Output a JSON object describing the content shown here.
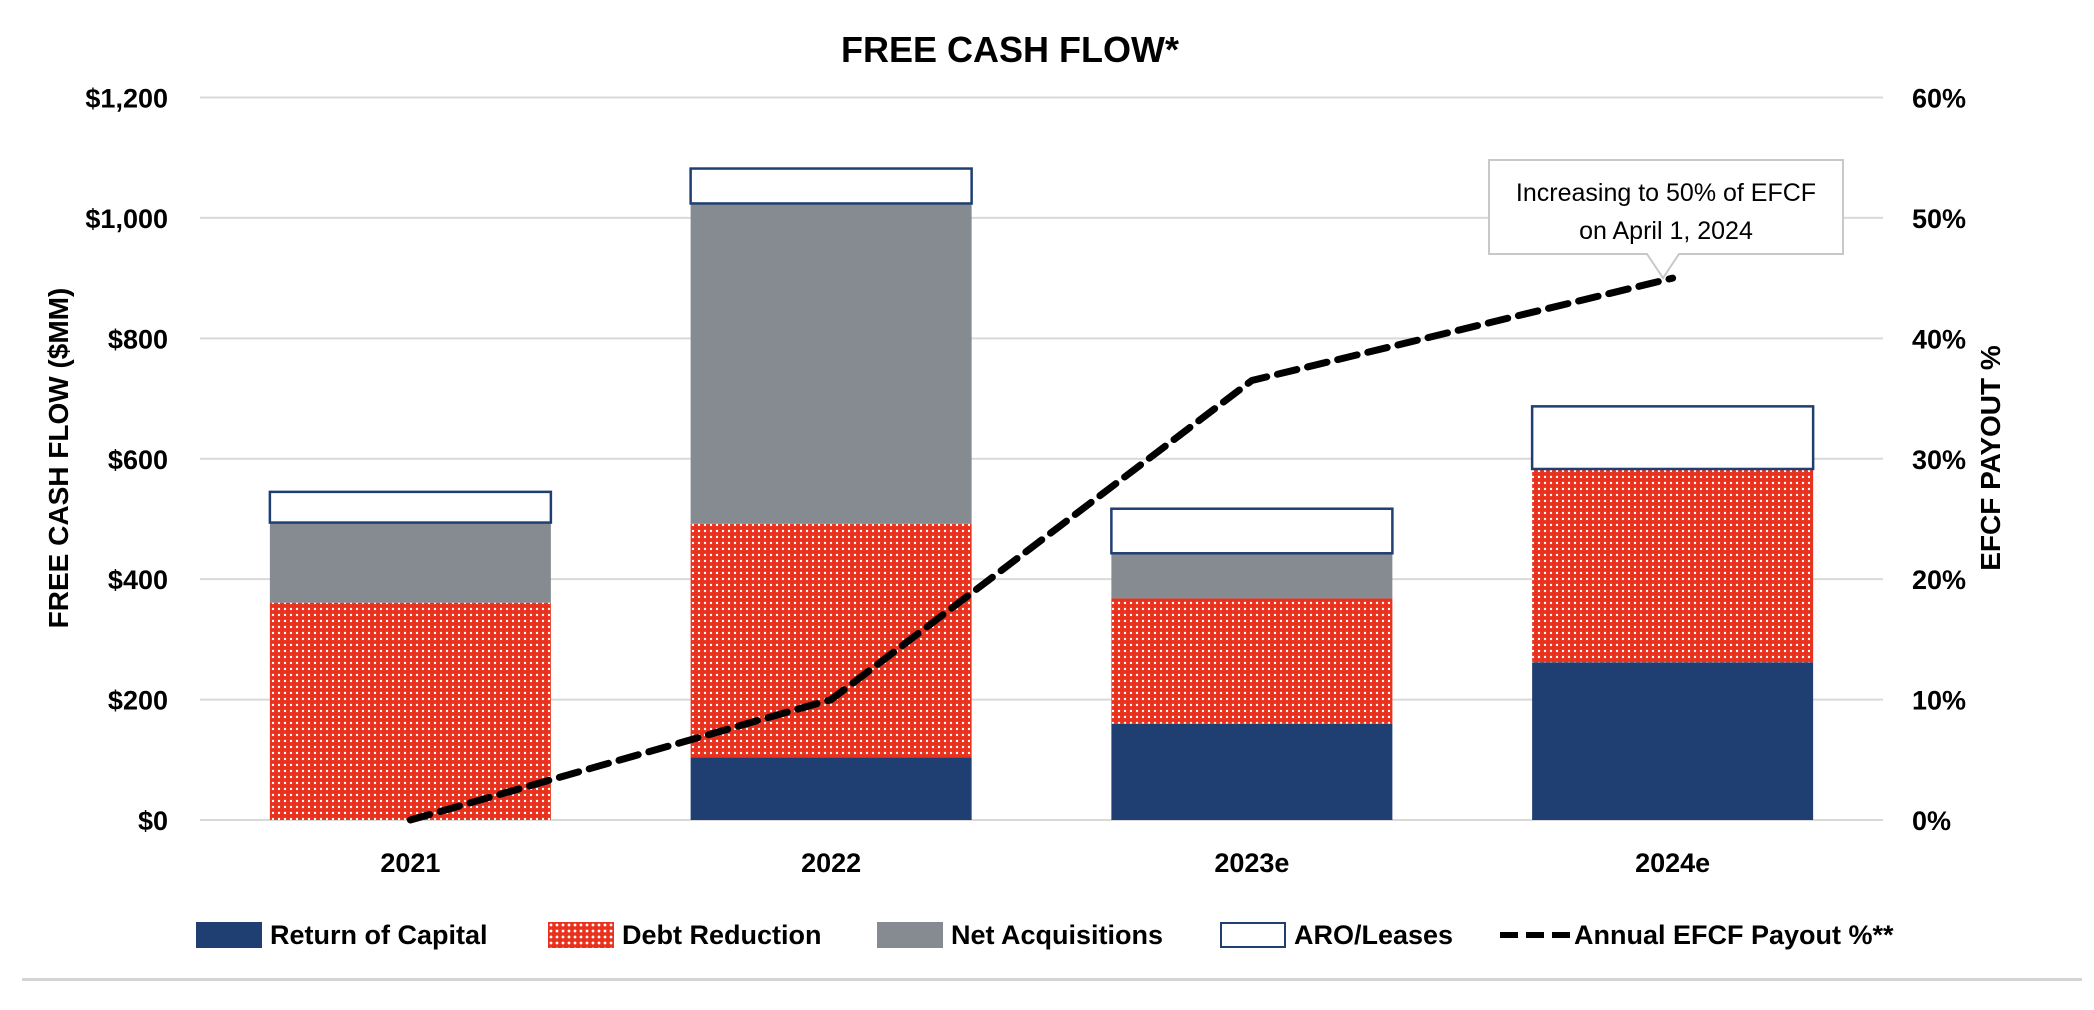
{
  "chart_data": {
    "type": "bar",
    "stacked": true,
    "title": "FREE CASH FLOW*",
    "ylabel": "FREE CASH FLOW ($MM)",
    "y2label": "EFCF PAYOUT %",
    "ylim": [
      0,
      1200
    ],
    "y2lim": [
      0,
      60
    ],
    "yticks": [
      "$0",
      "$200",
      "$400",
      "$600",
      "$800",
      "$1,000",
      "$1,200"
    ],
    "y2ticks": [
      "0%",
      "10%",
      "20%",
      "30%",
      "40%",
      "50%",
      "60%"
    ],
    "categories": [
      "2021",
      "2022",
      "2023e",
      "2024e"
    ],
    "series": [
      {
        "name": "Return of Capital",
        "color": "#1f3f72",
        "values": [
          0,
          104,
          160,
          262
        ]
      },
      {
        "name": "Debt Reduction",
        "color": "#e8321e",
        "values": [
          361,
          388,
          208,
          321
        ]
      },
      {
        "name": "Net Acquisitions",
        "color": "#868b91",
        "values": [
          133,
          532,
          75,
          0
        ]
      },
      {
        "name": "ARO/Leases",
        "color": "#ffffff",
        "values": [
          51,
          58,
          74,
          104
        ]
      }
    ],
    "line_series": {
      "name": "Annual EFCF Payout %**",
      "axis": "right",
      "values": [
        0,
        10,
        36.5,
        45
      ]
    },
    "annotation": {
      "line1": "Increasing to 50% of EFCF",
      "line2": "on April 1, 2024"
    },
    "grid": true,
    "legend_position": "bottom"
  }
}
